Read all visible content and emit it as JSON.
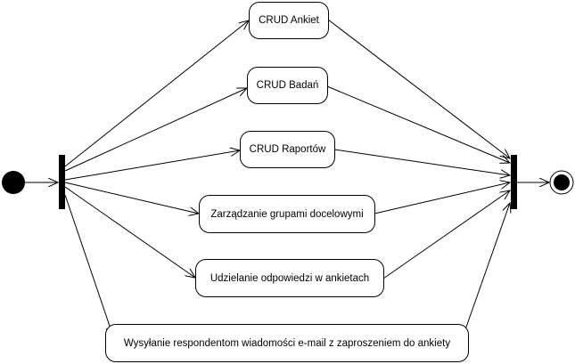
{
  "activities": [
    {
      "id": "crud-ankiet",
      "label": "CRUD Ankiet"
    },
    {
      "id": "crud-badan",
      "label": "CRUD Badań"
    },
    {
      "id": "crud-raportow",
      "label": "CRUD Raportów"
    },
    {
      "id": "zarzadzanie-grupami",
      "label": "Zarządzanie grupami docelowymi"
    },
    {
      "id": "udzielanie-odpowiedzi",
      "label": "Udzielanie odpowiedzi w ankietach"
    },
    {
      "id": "wysylanie-email",
      "label": "Wysyłanie respondentom wiadomości e-mail z zaproszeniem do ankiety"
    }
  ]
}
